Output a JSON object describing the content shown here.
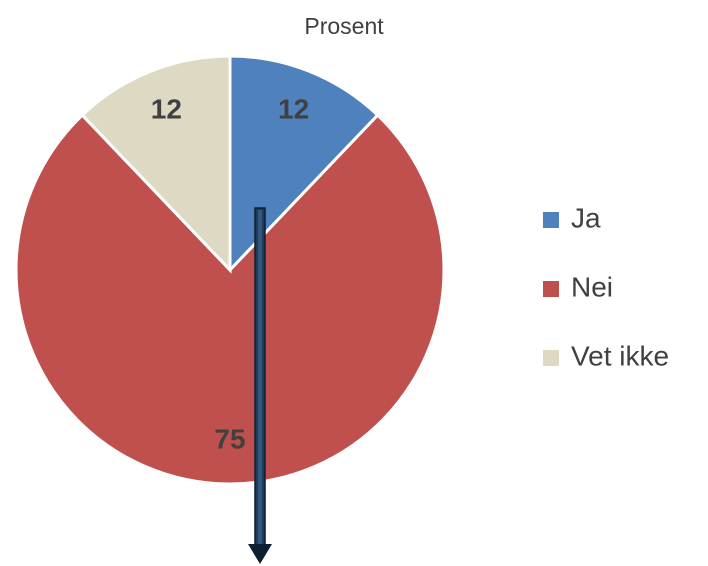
{
  "chart_data": {
    "type": "pie",
    "title": "Prosent",
    "categories": [
      "Ja",
      "Nei",
      "Vet ikke"
    ],
    "values": [
      12,
      75,
      12
    ],
    "colors": [
      "#4f81bd",
      "#c0504d",
      "#ddd9c3"
    ],
    "legend": "right"
  }
}
